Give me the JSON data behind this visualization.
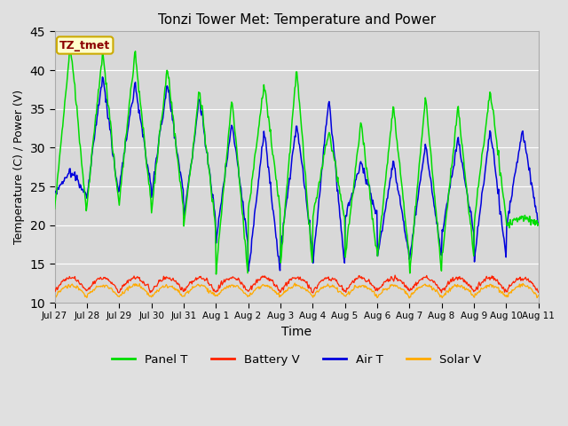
{
  "title": "Tonzi Tower Met: Temperature and Power",
  "xlabel": "Time",
  "ylabel": "Temperature (C) / Power (V)",
  "ylim": [
    10,
    45
  ],
  "yticks": [
    10,
    15,
    20,
    25,
    30,
    35,
    40,
    45
  ],
  "annotation_text": "TZ_tmet",
  "annotation_bg": "#ffffcc",
  "annotation_fg": "#8b0000",
  "annotation_border": "#ccaa00",
  "line_colors": {
    "panel_t": "#00dd00",
    "battery_v": "#ff2200",
    "air_t": "#0000dd",
    "solar_v": "#ffaa00"
  },
  "legend_labels": [
    "Panel T",
    "Battery V",
    "Air T",
    "Solar V"
  ],
  "fig_bg": "#e0e0e0",
  "plot_bg": "#d8d8d8",
  "grid_color": "#ffffff",
  "tick_labels": [
    "Jul 27",
    "Jul 28",
    "Jul 29",
    "Jul 30",
    "Jul 31",
    "Aug 1",
    "Aug 2",
    "Aug 3",
    "Aug 4",
    "Aug 5",
    "Aug 6",
    "Aug 7",
    "Aug 8",
    "Aug 9",
    "Aug 10",
    "Aug 11"
  ],
  "panel_t_peaks": [
    43,
    42,
    42,
    40,
    37,
    36,
    38,
    40,
    32,
    33,
    35,
    36,
    35,
    37,
    21
  ],
  "panel_t_troughs": [
    22,
    23,
    23,
    22,
    20,
    14,
    22,
    15,
    21,
    16,
    16,
    14,
    16,
    21,
    20
  ],
  "air_t_peaks": [
    27,
    39,
    38,
    38,
    36,
    33,
    32,
    33,
    36,
    28,
    28,
    30,
    31,
    32,
    32
  ],
  "air_t_troughs": [
    24,
    24,
    25,
    24,
    21,
    18,
    14,
    17,
    15,
    21,
    16,
    16,
    19,
    16,
    20
  ],
  "battery_base": 11.5,
  "battery_spike": 13.2,
  "solar_base": 10.8,
  "solar_spike": 12.2,
  "pts_per_day": 48,
  "num_days": 16
}
